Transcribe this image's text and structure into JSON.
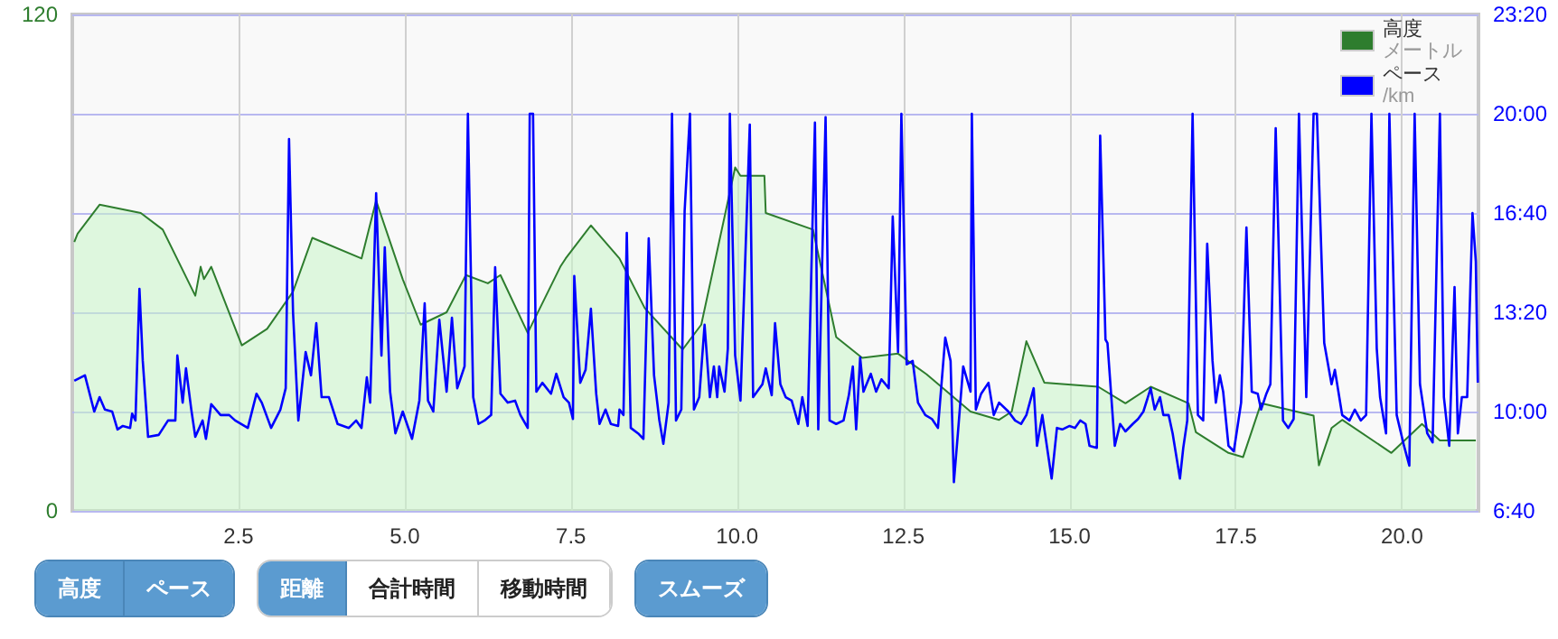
{
  "chart_data": {
    "type": "area",
    "xlim": [
      0,
      21.15
    ],
    "xticks": [
      2.5,
      {
        "value": 5,
        "label": "5.0"
      },
      7.5,
      {
        "value": 10,
        "label": "10.0"
      },
      12.5,
      {
        "value": 15,
        "label": "15.0"
      },
      17.5,
      {
        "value": 20,
        "label": "20.0"
      }
    ],
    "ylim": [
      0,
      120
    ],
    "yticks": [
      0,
      {
        "value": 24,
        "label": null
      },
      {
        "value": 48,
        "label": null
      },
      {
        "value": 72,
        "label": null
      },
      {
        "value": 96,
        "label": null
      },
      120
    ],
    "y2lim": [
      400,
      1400
    ],
    "y2ticks": [
      {
        "value": 400,
        "label": "6:40"
      },
      {
        "value": 600,
        "label": "10:00"
      },
      {
        "value": 800,
        "label": "13:20"
      },
      {
        "value": 1000,
        "label": "16:40"
      },
      {
        "value": 1200,
        "label": "20:00"
      },
      {
        "value": 1400,
        "label": "23:20"
      }
    ],
    "grid": true,
    "legend": "top right",
    "annotations": [
      "高度",
      "ペース",
      "距離",
      "合計時間",
      "移動時間",
      "スムーズ",
      "メートル",
      "/km"
    ],
    "series": [
      {
        "name": "高度",
        "color": "#2e7d2e",
        "x": [
          0.03,
          0.08,
          0.41,
          1.03,
          1.36,
          1.85,
          1.93,
          1.98,
          2.09,
          2.55,
          2.93,
          3.32,
          3.61,
          4.35,
          4.57,
          4.97,
          5.24,
          5.63,
          5.92,
          6.25,
          6.44,
          6.85,
          7.34,
          7.42,
          7.8,
          8.23,
          8.61,
          9.18,
          9.46,
          9.97,
          10.05,
          10.41,
          10.43,
          11.14,
          11.49,
          11.88,
          12.42,
          12.85,
          13.51,
          13.94,
          14.13,
          14.35,
          14.62,
          15.43,
          15.84,
          16.22,
          16.79,
          16.9,
          17.39,
          17.61,
          17.88,
          18.67,
          18.75,
          18.94,
          19.1,
          19.84,
          20.3,
          20.57,
          21.11
        ],
        "values": [
          65,
          67,
          74,
          72,
          68,
          52,
          59,
          56,
          59,
          40,
          44,
          53,
          66,
          61,
          75,
          56,
          45,
          48,
          57,
          55,
          57,
          43,
          59,
          61,
          69,
          61,
          49,
          39,
          45,
          83,
          81,
          81,
          72,
          68,
          42,
          37,
          38,
          33,
          24,
          22,
          24,
          41,
          31,
          30,
          26,
          30,
          26,
          19,
          14,
          13,
          26,
          23,
          11,
          20,
          22,
          14,
          21,
          17,
          17
        ]
      },
      {
        "name": "ペース",
        "type": "line",
        "axis": "y2",
        "color": "#0000ff",
        "x": [
          0.03,
          0.19,
          0.33,
          0.41,
          0.49,
          0.6,
          0.68,
          0.76,
          0.87,
          0.9,
          0.95,
          1.01,
          1.06,
          1.14,
          1.3,
          1.44,
          1.55,
          1.58,
          1.66,
          1.71,
          1.79,
          1.85,
          1.96,
          2.01,
          2.09,
          2.23,
          2.36,
          2.45,
          2.64,
          2.77,
          2.85,
          2.99,
          3.13,
          3.21,
          3.26,
          3.32,
          3.4,
          3.51,
          3.59,
          3.67,
          3.75,
          3.86,
          3.99,
          4.16,
          4.27,
          4.35,
          4.43,
          4.48,
          4.57,
          4.65,
          4.7,
          4.78,
          4.86,
          4.97,
          5.11,
          5.22,
          5.3,
          5.35,
          5.43,
          5.52,
          5.63,
          5.71,
          5.79,
          5.9,
          5.95,
          6.03,
          6.11,
          6.2,
          6.3,
          6.36,
          6.44,
          6.55,
          6.66,
          6.74,
          6.85,
          6.88,
          6.93,
          6.98,
          7.07,
          7.2,
          7.28,
          7.39,
          7.47,
          7.53,
          7.55,
          7.64,
          7.72,
          7.8,
          7.88,
          7.93,
          8.02,
          8.1,
          8.21,
          8.23,
          8.29,
          8.34,
          8.4,
          8.51,
          8.59,
          8.67,
          8.75,
          8.83,
          8.89,
          8.97,
          9.02,
          9.08,
          9.16,
          9.21,
          9.29,
          9.35,
          9.43,
          9.51,
          9.59,
          9.65,
          9.7,
          9.73,
          9.81,
          9.86,
          9.89,
          9.97,
          10.05,
          10.19,
          10.24,
          10.38,
          10.43,
          10.52,
          10.57,
          10.65,
          10.73,
          10.82,
          10.92,
          10.98,
          11.06,
          11.17,
          11.22,
          11.33,
          11.39,
          11.49,
          11.6,
          11.68,
          11.74,
          11.79,
          11.85,
          11.9,
          12.01,
          12.09,
          12.17,
          12.28,
          12.34,
          12.42,
          12.47,
          12.55,
          12.64,
          12.72,
          12.83,
          12.93,
          13.02,
          13.13,
          13.21,
          13.26,
          13.32,
          13.4,
          13.51,
          13.53,
          13.59,
          13.67,
          13.78,
          13.86,
          13.94,
          14.08,
          14.18,
          14.27,
          14.35,
          14.46,
          14.51,
          14.59,
          14.73,
          14.81,
          14.89,
          15.0,
          15.08,
          15.16,
          15.24,
          15.3,
          15.41,
          15.46,
          15.54,
          15.57,
          15.68,
          15.76,
          15.84,
          15.95,
          16.03,
          16.11,
          16.22,
          16.28,
          16.36,
          16.41,
          16.49,
          16.55,
          16.66,
          16.71,
          16.77,
          16.85,
          16.93,
          17.01,
          17.07,
          17.15,
          17.2,
          17.26,
          17.31,
          17.39,
          17.47,
          17.58,
          17.66,
          17.74,
          17.83,
          17.88,
          17.96,
          18.02,
          18.1,
          18.21,
          18.29,
          18.37,
          18.45,
          18.56,
          18.67,
          18.72,
          18.83,
          18.94,
          18.99,
          19.1,
          19.21,
          19.29,
          19.38,
          19.46,
          19.54,
          19.62,
          19.67,
          19.76,
          19.81,
          19.92,
          20.03,
          20.11,
          20.19,
          20.27,
          20.38,
          20.46,
          20.57,
          20.63,
          20.71,
          20.79,
          20.84,
          20.9,
          20.98,
          21.06,
          21.11,
          21.14
        ],
        "values": [
          662,
          673,
          600,
          629,
          604,
          600,
          564,
          571,
          567,
          596,
          582,
          847,
          702,
          549,
          553,
          582,
          582,
          713,
          618,
          687,
          604,
          549,
          582,
          545,
          615,
          593,
          593,
          582,
          567,
          636,
          618,
          567,
          604,
          647,
          1149,
          800,
          582,
          720,
          673,
          778,
          629,
          629,
          575,
          567,
          582,
          567,
          669,
          618,
          1040,
          713,
          931,
          640,
          556,
          600,
          545,
          622,
          818,
          622,
          600,
          785,
          640,
          789,
          647,
          691,
          1200,
          629,
          575,
          582,
          593,
          891,
          636,
          618,
          622,
          593,
          567,
          1200,
          1200,
          640,
          658,
          636,
          676,
          629,
          618,
          585,
          873,
          658,
          684,
          807,
          636,
          575,
          604,
          575,
          571,
          604,
          593,
          960,
          567,
          556,
          545,
          949,
          673,
          582,
          535,
          618,
          1200,
          582,
          604,
          1004,
          1200,
          604,
          629,
          775,
          629,
          691,
          629,
          691,
          640,
          727,
          1200,
          713,
          622,
          1178,
          629,
          655,
          687,
          633,
          778,
          655,
          629,
          622,
          575,
          629,
          571,
          1182,
          564,
          1193,
          582,
          575,
          582,
          633,
          691,
          564,
          709,
          640,
          676,
          640,
          665,
          647,
          993,
          720,
          1200,
          695,
          702,
          618,
          593,
          585,
          567,
          749,
          702,
          458,
          556,
          691,
          640,
          1200,
          604,
          636,
          658,
          593,
          618,
          600,
          582,
          575,
          593,
          647,
          531,
          593,
          465,
          567,
          564,
          571,
          567,
          582,
          575,
          531,
          527,
          1156,
          745,
          738,
          531,
          575,
          560,
          575,
          585,
          600,
          647,
          604,
          629,
          593,
          593,
          556,
          465,
          527,
          582,
          1200,
          593,
          582,
          938,
          702,
          618,
          673,
          640,
          531,
          520,
          618,
          971,
          640,
          636,
          604,
          636,
          655,
          1171,
          582,
          567,
          585,
          1200,
          629,
          1200,
          1200,
          738,
          655,
          684,
          593,
          582,
          604,
          582,
          593,
          1200,
          727,
          629,
          556,
          1200,
          593,
          531,
          491,
          1200,
          655,
          556,
          538,
          1200,
          629,
          531,
          851,
          556,
          629,
          629,
          1000,
          902,
          658
        ]
      }
    ]
  }
}
